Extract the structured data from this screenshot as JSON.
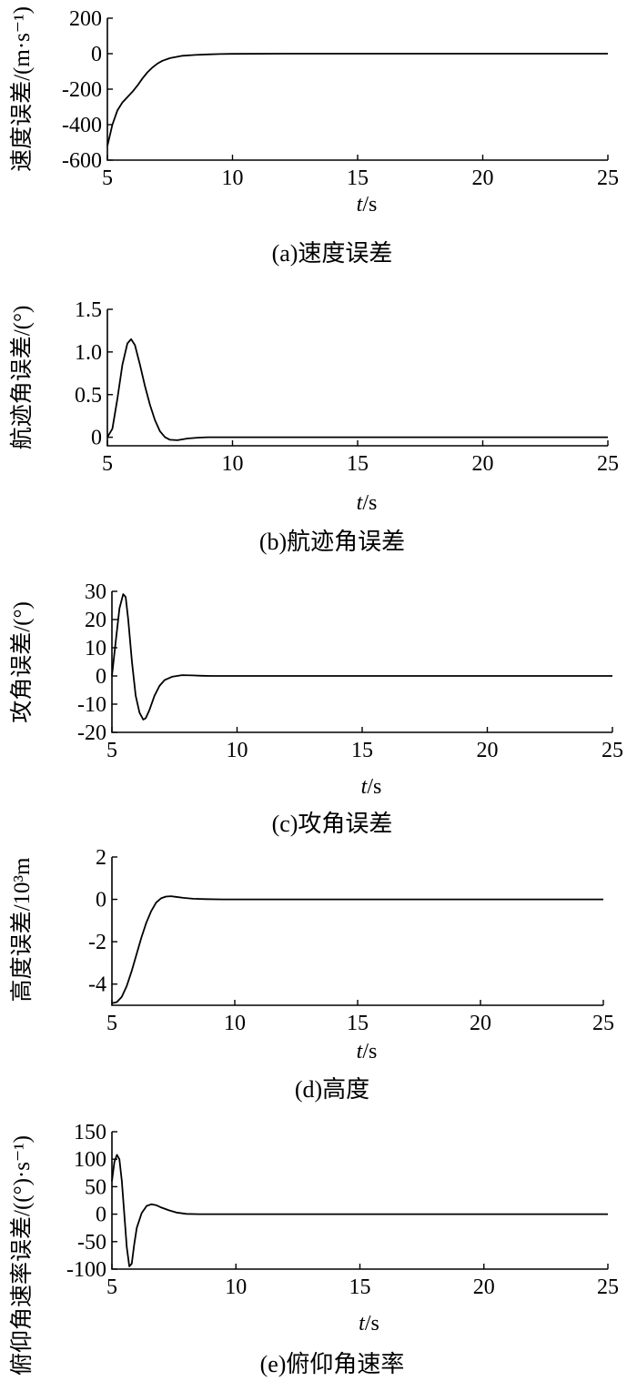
{
  "chart_data": [
    {
      "type": "line",
      "caption": "(a)速度误差",
      "xlabel_italic": "t",
      "xlabel_unit": "/s",
      "ylabel": "速度误差/(m·s⁻¹)",
      "xlim": [
        5,
        25
      ],
      "ylim": [
        -600,
        200
      ],
      "xticks": [
        "5",
        "10",
        "15",
        "20",
        "25"
      ],
      "yticks": [
        "200",
        "0",
        "-200",
        "-400",
        "-600"
      ],
      "grid": false,
      "series": [
        {
          "x": [
            5,
            5.2,
            5.4,
            5.6,
            5.8,
            6.0,
            6.2,
            6.4,
            6.6,
            6.8,
            7.0,
            7.2,
            7.5,
            8.0,
            8.5,
            9.0,
            9.5,
            10,
            12,
            15,
            20,
            25
          ],
          "y": [
            -520,
            -400,
            -320,
            -275,
            -245,
            -215,
            -180,
            -140,
            -105,
            -78,
            -56,
            -40,
            -25,
            -12,
            -7,
            -4,
            -2,
            -1,
            0,
            0,
            0,
            0
          ]
        }
      ]
    },
    {
      "type": "line",
      "caption": "(b)航迹角误差",
      "xlabel_italic": "t",
      "xlabel_unit": "/s",
      "ylabel": "航迹角误差/(°)",
      "xlim": [
        5,
        25
      ],
      "ylim": [
        -0.1,
        1.5
      ],
      "xticks": [
        "5",
        "10",
        "15",
        "20",
        "25"
      ],
      "yticks": [
        "1.5",
        "1.0",
        "0.5",
        "0"
      ],
      "grid": false,
      "series": [
        {
          "x": [
            5,
            5.2,
            5.4,
            5.6,
            5.8,
            5.95,
            6.1,
            6.3,
            6.5,
            6.7,
            6.9,
            7.1,
            7.3,
            7.5,
            7.8,
            8.2,
            8.6,
            9.0,
            10,
            12,
            15,
            20,
            25
          ],
          "y": [
            0,
            0.1,
            0.45,
            0.85,
            1.1,
            1.15,
            1.08,
            0.85,
            0.6,
            0.38,
            0.2,
            0.07,
            0.0,
            -0.03,
            -0.035,
            -0.015,
            -0.005,
            0.0,
            0.0,
            0.0,
            0.0,
            0.0,
            0.0
          ]
        }
      ]
    },
    {
      "type": "line",
      "caption": "(c)攻角误差",
      "xlabel_italic": "t",
      "xlabel_unit": "/s",
      "ylabel": "攻角误差/(°)",
      "xlim": [
        5,
        25
      ],
      "ylim": [
        -20,
        30
      ],
      "xticks": [
        "5",
        "10",
        "15",
        "20",
        "25"
      ],
      "yticks": [
        "30",
        "20",
        "10",
        "0",
        "-10",
        "-20"
      ],
      "grid": false,
      "series": [
        {
          "x": [
            5,
            5.15,
            5.3,
            5.45,
            5.55,
            5.65,
            5.8,
            5.95,
            6.1,
            6.25,
            6.35,
            6.5,
            6.7,
            6.9,
            7.1,
            7.4,
            7.8,
            8.2,
            8.6,
            9.0,
            10,
            12,
            15,
            20,
            25
          ],
          "y": [
            0,
            12,
            24,
            29,
            28,
            20,
            5,
            -7,
            -13,
            -15.5,
            -15,
            -12,
            -7,
            -3.5,
            -1.5,
            -0.3,
            0.3,
            0.2,
            0.05,
            0,
            0,
            0,
            0,
            0,
            0
          ]
        }
      ]
    },
    {
      "type": "line",
      "caption": "(d)高度",
      "xlabel_italic": "t",
      "xlabel_unit": "/s",
      "ylabel": "高度误差/10³m",
      "xlim": [
        5,
        25
      ],
      "ylim": [
        -5,
        2
      ],
      "xticks": [
        "5",
        "10",
        "15",
        "20",
        "25"
      ],
      "yticks": [
        "2",
        "0",
        "-2",
        "-4"
      ],
      "grid": false,
      "series": [
        {
          "x": [
            5,
            5.2,
            5.4,
            5.6,
            5.8,
            6.0,
            6.2,
            6.4,
            6.6,
            6.8,
            7.0,
            7.2,
            7.4,
            7.6,
            7.9,
            8.3,
            8.8,
            9.5,
            10,
            12,
            15,
            20,
            25
          ],
          "y": [
            -4.9,
            -4.85,
            -4.6,
            -4.1,
            -3.4,
            -2.6,
            -1.8,
            -1.1,
            -0.55,
            -0.15,
            0.05,
            0.13,
            0.15,
            0.12,
            0.07,
            0.03,
            0.01,
            0,
            0,
            0,
            0,
            0,
            0
          ]
        }
      ]
    },
    {
      "type": "line",
      "caption": "(e)俯仰角速率",
      "xlabel_italic": "t",
      "xlabel_unit": "/s",
      "ylabel": "俯仰角速率误差/((°)·s⁻¹)",
      "xlim": [
        5,
        25
      ],
      "ylim": [
        -100,
        150
      ],
      "xticks": [
        "5",
        "10",
        "15",
        "20",
        "25"
      ],
      "yticks": [
        "150",
        "100",
        "50",
        "0",
        "-50",
        "-100"
      ],
      "grid": false,
      "series": [
        {
          "x": [
            5,
            5.1,
            5.2,
            5.3,
            5.4,
            5.5,
            5.6,
            5.7,
            5.8,
            5.9,
            6.0,
            6.2,
            6.4,
            6.6,
            6.8,
            7.0,
            7.3,
            7.6,
            8.0,
            8.5,
            9.0,
            10,
            12,
            15,
            20,
            25
          ],
          "y": [
            60,
            95,
            108,
            100,
            60,
            0,
            -60,
            -95,
            -90,
            -55,
            -25,
            2,
            15,
            18,
            16,
            12,
            7,
            3,
            0.5,
            0,
            0,
            0,
            0,
            0,
            0,
            0
          ]
        }
      ]
    }
  ]
}
